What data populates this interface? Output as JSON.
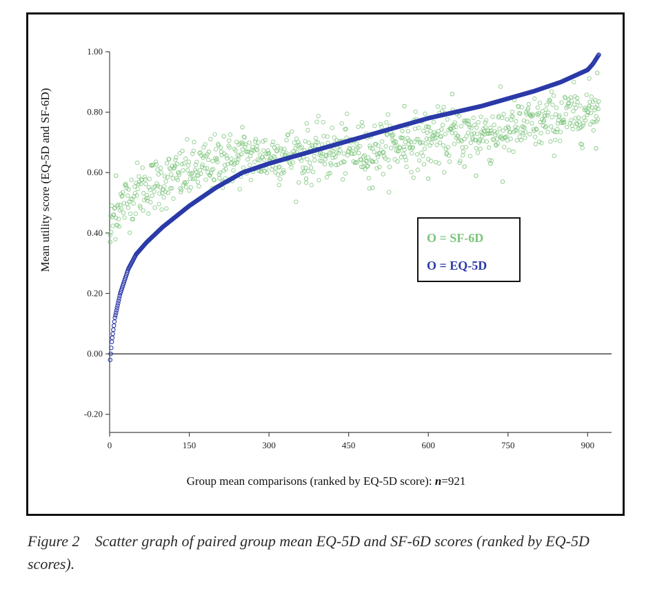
{
  "chart_data": {
    "type": "scatter",
    "ylabel": "Mean utility score (EQ-5D and SF-6D)",
    "xlabel_prefix": "Group mean comparisons (ranked by EQ-5D score): ",
    "xlabel_n": "n",
    "xlabel_suffix": "=921",
    "xlim": [
      0,
      945
    ],
    "ylim": [
      -0.26,
      1.0
    ],
    "x_ticks": [
      0,
      150,
      300,
      450,
      600,
      750,
      900
    ],
    "x_tick_labels": [
      "0",
      "150",
      "300",
      "450",
      "600",
      "750",
      "900"
    ],
    "y_ticks": [
      1.0,
      0.8,
      0.6,
      0.4,
      0.2,
      0.0,
      -0.2
    ],
    "y_tick_labels": [
      "1.00",
      "0.80",
      "0.60",
      "0.40",
      "0.20",
      "0.00",
      "-0.20"
    ],
    "reference_line_y": 0.0,
    "marker": "open-circle",
    "legend": {
      "placement": "center-right",
      "entries": [
        {
          "label": "O = SF-6D",
          "color": "#7cc47c"
        },
        {
          "label": "O = EQ-5D",
          "color": "#2b3aa8"
        }
      ]
    },
    "series": [
      {
        "name": "EQ-5D",
        "color": "#2b3aa8",
        "n": 921,
        "curve_x": [
          0,
          1,
          4,
          10,
          20,
          35,
          50,
          70,
          100,
          150,
          200,
          250,
          300,
          350,
          400,
          450,
          500,
          550,
          600,
          650,
          700,
          750,
          800,
          850,
          900,
          910,
          921
        ],
        "curve_y": [
          -0.08,
          -0.02,
          0.04,
          0.12,
          0.2,
          0.28,
          0.33,
          0.37,
          0.42,
          0.49,
          0.55,
          0.6,
          0.63,
          0.655,
          0.68,
          0.705,
          0.73,
          0.755,
          0.78,
          0.8,
          0.82,
          0.845,
          0.87,
          0.9,
          0.94,
          0.96,
          0.99
        ]
      },
      {
        "name": "SF-6D",
        "color": "#7cc47c",
        "n": 921,
        "trend_x": [
          0,
          10,
          50,
          100,
          150,
          200,
          250,
          300,
          350,
          400,
          450,
          500,
          550,
          600,
          650,
          700,
          750,
          800,
          850,
          900,
          921
        ],
        "trend_y": [
          0.4,
          0.47,
          0.54,
          0.57,
          0.6,
          0.63,
          0.65,
          0.655,
          0.66,
          0.665,
          0.67,
          0.68,
          0.695,
          0.71,
          0.72,
          0.73,
          0.74,
          0.76,
          0.78,
          0.8,
          0.82
        ],
        "spread": 0.045,
        "outliers": [
          {
            "x": 1,
            "y": 0.37
          },
          {
            "x": 12,
            "y": 0.59
          },
          {
            "x": 215,
            "y": 0.72
          },
          {
            "x": 250,
            "y": 0.75
          },
          {
            "x": 370,
            "y": 0.58
          },
          {
            "x": 495,
            "y": 0.55
          },
          {
            "x": 485,
            "y": 0.62
          },
          {
            "x": 555,
            "y": 0.82
          },
          {
            "x": 600,
            "y": 0.58
          },
          {
            "x": 645,
            "y": 0.86
          },
          {
            "x": 668,
            "y": 0.62
          },
          {
            "x": 690,
            "y": 0.59
          },
          {
            "x": 717,
            "y": 0.63
          },
          {
            "x": 740,
            "y": 0.57
          },
          {
            "x": 820,
            "y": 0.75
          },
          {
            "x": 880,
            "y": 0.76
          },
          {
            "x": 903,
            "y": 0.82
          },
          {
            "x": 916,
            "y": 0.68
          },
          {
            "x": 918,
            "y": 0.93
          }
        ]
      }
    ]
  },
  "caption": {
    "label": "Figure 2",
    "text": "Scatter graph of paired group mean EQ-5D and SF-6D scores (ranked by EQ-5D scores)."
  }
}
